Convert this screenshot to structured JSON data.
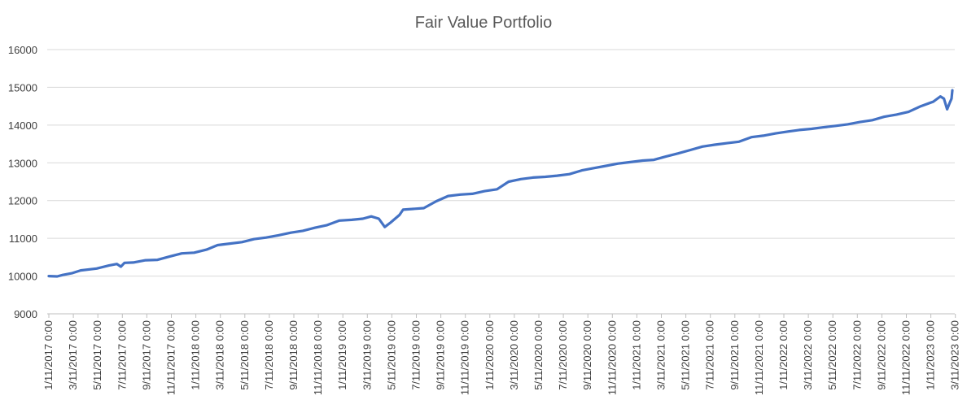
{
  "chart_data": {
    "type": "line",
    "title": "Fair Value Portfolio",
    "xlabel": "",
    "ylabel": "",
    "ylim": [
      9000,
      16000
    ],
    "y_ticks": [
      9000,
      10000,
      11000,
      12000,
      13000,
      14000,
      15000,
      16000
    ],
    "x_start": "2017-01-11",
    "x_end": "2023-03-31",
    "x_tick_labels": [
      "1/11/2017 0:00",
      "3/11/2017 0:00",
      "5/11/2017 0:00",
      "7/11/2017 0:00",
      "9/11/2017 0:00",
      "11/11/2017 0:00",
      "1/11/2018 0:00",
      "3/11/2018 0:00",
      "5/11/2018 0:00",
      "7/11/2018 0:00",
      "9/11/2018 0:00",
      "11/11/2018 0:00",
      "1/11/2019 0:00",
      "3/11/2019 0:00",
      "5/11/2019 0:00",
      "7/11/2019 0:00",
      "9/11/2019 0:00",
      "11/11/2019 0:00",
      "1/11/2020 0:00",
      "3/11/2020 0:00",
      "5/11/2020 0:00",
      "7/11/2020 0:00",
      "9/11/2020 0:00",
      "11/11/2020 0:00",
      "1/11/2021 0:00",
      "3/11/2021 0:00",
      "5/11/2021 0:00",
      "7/11/2021 0:00",
      "9/11/2021 0:00",
      "11/11/2021 0:00",
      "1/11/2022 0:00",
      "3/11/2022 0:00",
      "5/11/2022 0:00",
      "7/11/2022 0:00",
      "9/11/2022 0:00",
      "11/11/2022 0:00",
      "1/11/2023 0:00",
      "3/11/2023 0:00"
    ],
    "grid": true,
    "legend": "none",
    "series": [
      {
        "color": "#4472c4",
        "points": [
          [
            "2017-01-11",
            10000
          ],
          [
            "2017-02-01",
            9990
          ],
          [
            "2017-02-15",
            10030
          ],
          [
            "2017-03-11",
            10080
          ],
          [
            "2017-04-01",
            10150
          ],
          [
            "2017-05-11",
            10200
          ],
          [
            "2017-06-11",
            10280
          ],
          [
            "2017-07-01",
            10320
          ],
          [
            "2017-07-11",
            10250
          ],
          [
            "2017-07-20",
            10350
          ],
          [
            "2017-08-11",
            10360
          ],
          [
            "2017-09-11",
            10420
          ],
          [
            "2017-10-11",
            10430
          ],
          [
            "2017-11-11",
            10520
          ],
          [
            "2017-12-11",
            10600
          ],
          [
            "2018-01-11",
            10620
          ],
          [
            "2018-02-11",
            10700
          ],
          [
            "2018-03-11",
            10820
          ],
          [
            "2018-04-11",
            10860
          ],
          [
            "2018-05-11",
            10900
          ],
          [
            "2018-06-11",
            10980
          ],
          [
            "2018-07-11",
            11020
          ],
          [
            "2018-08-11",
            11080
          ],
          [
            "2018-09-11",
            11150
          ],
          [
            "2018-10-11",
            11200
          ],
          [
            "2018-11-11",
            11280
          ],
          [
            "2018-12-11",
            11350
          ],
          [
            "2019-01-11",
            11470
          ],
          [
            "2019-02-11",
            11490
          ],
          [
            "2019-03-11",
            11520
          ],
          [
            "2019-04-01",
            11580
          ],
          [
            "2019-04-20",
            11520
          ],
          [
            "2019-05-05",
            11300
          ],
          [
            "2019-05-20",
            11420
          ],
          [
            "2019-06-11",
            11620
          ],
          [
            "2019-06-20",
            11760
          ],
          [
            "2019-08-11",
            11800
          ],
          [
            "2019-09-11",
            11980
          ],
          [
            "2019-10-11",
            12120
          ],
          [
            "2019-11-11",
            12160
          ],
          [
            "2019-12-11",
            12180
          ],
          [
            "2020-01-11",
            12250
          ],
          [
            "2020-02-11",
            12300
          ],
          [
            "2020-03-11",
            12500
          ],
          [
            "2020-04-11",
            12570
          ],
          [
            "2020-05-11",
            12610
          ],
          [
            "2020-06-11",
            12630
          ],
          [
            "2020-07-11",
            12660
          ],
          [
            "2020-08-11",
            12700
          ],
          [
            "2020-09-11",
            12800
          ],
          [
            "2020-10-11",
            12860
          ],
          [
            "2020-11-11",
            12920
          ],
          [
            "2020-12-11",
            12980
          ],
          [
            "2021-01-11",
            13020
          ],
          [
            "2021-02-11",
            13060
          ],
          [
            "2021-03-11",
            13080
          ],
          [
            "2021-04-11",
            13170
          ],
          [
            "2021-05-11",
            13250
          ],
          [
            "2021-06-11",
            13340
          ],
          [
            "2021-07-11",
            13430
          ],
          [
            "2021-08-11",
            13480
          ],
          [
            "2021-09-11",
            13520
          ],
          [
            "2021-10-11",
            13560
          ],
          [
            "2021-11-11",
            13680
          ],
          [
            "2021-12-11",
            13720
          ],
          [
            "2022-01-11",
            13780
          ],
          [
            "2022-02-11",
            13830
          ],
          [
            "2022-03-11",
            13870
          ],
          [
            "2022-04-11",
            13900
          ],
          [
            "2022-05-11",
            13940
          ],
          [
            "2022-06-11",
            13980
          ],
          [
            "2022-07-11",
            14020
          ],
          [
            "2022-08-11",
            14080
          ],
          [
            "2022-09-11",
            14130
          ],
          [
            "2022-10-11",
            14220
          ],
          [
            "2022-11-11",
            14280
          ],
          [
            "2022-12-11",
            14350
          ],
          [
            "2023-01-11",
            14500
          ],
          [
            "2023-02-11",
            14620
          ],
          [
            "2023-03-01",
            14760
          ],
          [
            "2023-03-10",
            14700
          ],
          [
            "2023-03-18",
            14420
          ],
          [
            "2023-03-24",
            14580
          ],
          [
            "2023-03-29",
            14700
          ],
          [
            "2023-03-31",
            14920
          ]
        ]
      }
    ]
  }
}
